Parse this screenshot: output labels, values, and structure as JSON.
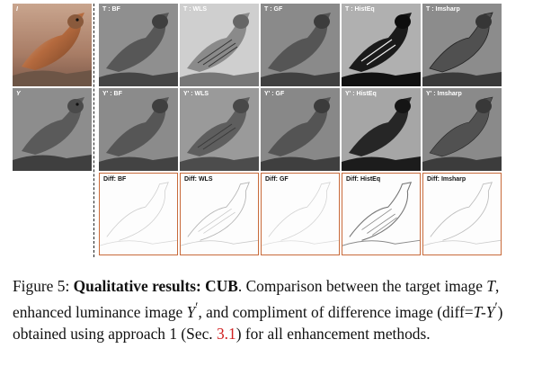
{
  "figure": {
    "original_label": "I",
    "luminance_label": "Y",
    "row_target": [
      {
        "label": "T : BF",
        "tone": "smooth"
      },
      {
        "label": "T : WLS",
        "tone": "light"
      },
      {
        "label": "T : GF",
        "tone": "smooth"
      },
      {
        "label": "T : HistEq",
        "tone": "contrast"
      },
      {
        "label": "T : Imsharp",
        "tone": "sharp"
      }
    ],
    "row_enhanced": [
      {
        "label": "Y' : BF"
      },
      {
        "label": "Y' : WLS"
      },
      {
        "label": "Y' : GF"
      },
      {
        "label": "Y' : HistEq"
      },
      {
        "label": "Y' : Imsharp"
      }
    ],
    "row_diff": [
      {
        "label": "Diff: BF"
      },
      {
        "label": "Diff: WLS"
      },
      {
        "label": "Diff: GF"
      },
      {
        "label": "Diff: HistEq"
      },
      {
        "label": "Diff: Imsharp"
      }
    ]
  },
  "caption": {
    "prefix": "Figure 5: ",
    "bold": "Qualitative results: CUB",
    "text1": ". Comparison between the target image ",
    "var_T": "T",
    "text2": ", enhanced luminance image ",
    "var_Y": "Y",
    "prime": "′",
    "text3": ", and compliment of difference image (diff=",
    "diff_expr": "T-Y",
    "text4": ") obtained using approach 1 (Sec. ",
    "ref": "3.1",
    "text5": ") for all enhancement methods."
  },
  "colors": {
    "ref": "#d01f1f",
    "diff_border": "#c86a3a"
  }
}
